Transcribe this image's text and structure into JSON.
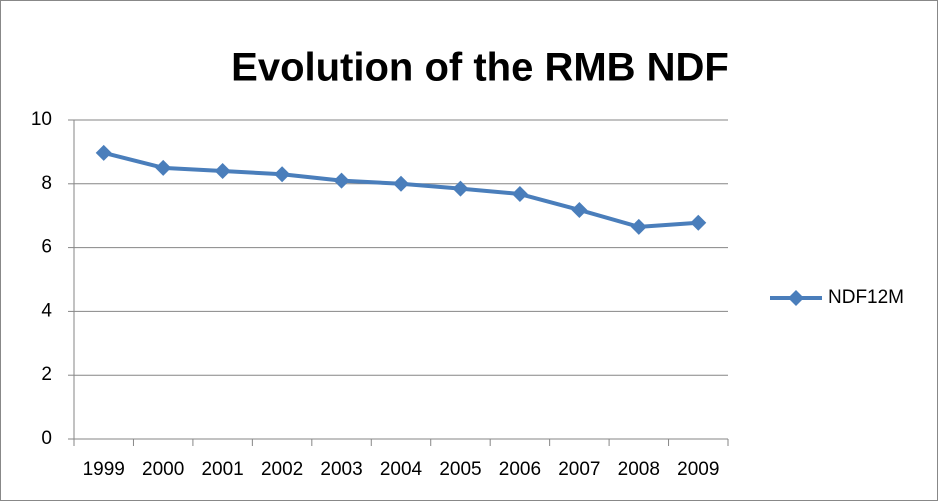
{
  "chart_data": {
    "type": "line",
    "title": "Evolution of the RMB NDF",
    "categories": [
      "1999",
      "2000",
      "2001",
      "2002",
      "2003",
      "2004",
      "2005",
      "2006",
      "2007",
      "2008",
      "2009"
    ],
    "series": [
      {
        "name": "NDF12M",
        "color": "#4a7ebb",
        "values": [
          8.97,
          8.5,
          8.4,
          8.3,
          8.1,
          8.0,
          7.85,
          7.68,
          7.18,
          6.65,
          6.78
        ]
      }
    ],
    "ylim": [
      0,
      10
    ],
    "yticks": [
      0,
      2,
      4,
      6,
      8,
      10
    ],
    "grid": true,
    "legend": "right"
  }
}
